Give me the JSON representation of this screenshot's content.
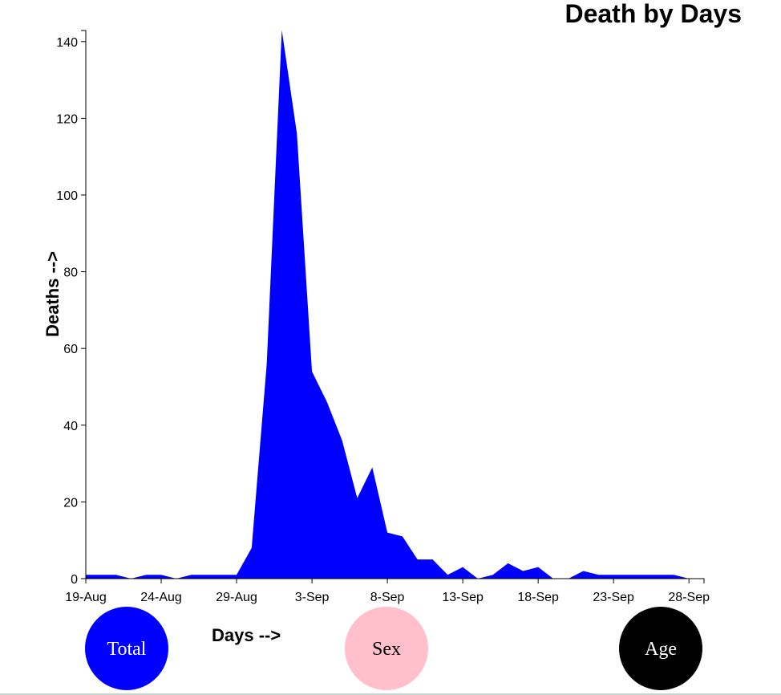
{
  "chart_data": {
    "type": "area",
    "title": "Death by Days",
    "xlabel": "Days -->",
    "ylabel": "Deaths -->",
    "ylim": [
      0,
      143
    ],
    "yticks": [
      0,
      20,
      40,
      60,
      80,
      100,
      120,
      140
    ],
    "xticks": [
      "19-Aug",
      "24-Aug",
      "29-Aug",
      "3-Sep",
      "8-Sep",
      "13-Sep",
      "18-Sep",
      "23-Sep",
      "28-Sep"
    ],
    "x": [
      "19-Aug",
      "20-Aug",
      "21-Aug",
      "22-Aug",
      "23-Aug",
      "24-Aug",
      "25-Aug",
      "26-Aug",
      "27-Aug",
      "28-Aug",
      "29-Aug",
      "30-Aug",
      "31-Aug",
      "1-Sep",
      "2-Sep",
      "3-Sep",
      "4-Sep",
      "5-Sep",
      "6-Sep",
      "7-Sep",
      "8-Sep",
      "9-Sep",
      "10-Sep",
      "11-Sep",
      "12-Sep",
      "13-Sep",
      "14-Sep",
      "15-Sep",
      "16-Sep",
      "17-Sep",
      "18-Sep",
      "19-Sep",
      "20-Sep",
      "21-Sep",
      "22-Sep",
      "23-Sep",
      "24-Sep",
      "25-Sep",
      "26-Sep",
      "27-Sep",
      "28-Sep",
      "29-Sep"
    ],
    "values": [
      1,
      1,
      1,
      0,
      1,
      1,
      0,
      1,
      1,
      1,
      1,
      8,
      56,
      143,
      116,
      54,
      46,
      36,
      21,
      29,
      12,
      11,
      5,
      5,
      1,
      3,
      0,
      1,
      4,
      2,
      3,
      0,
      0,
      2,
      1,
      1,
      1,
      1,
      1,
      1,
      0,
      0
    ],
    "color": "#0000ff"
  },
  "buttons": {
    "total": {
      "label": "Total",
      "color": "#0000ff",
      "text_color": "#ffffff"
    },
    "sex": {
      "label": "Sex",
      "color": "#ffc0cb",
      "text_color": "#000000"
    },
    "age": {
      "label": "Age",
      "color": "#000000",
      "text_color": "#ffffff"
    }
  }
}
